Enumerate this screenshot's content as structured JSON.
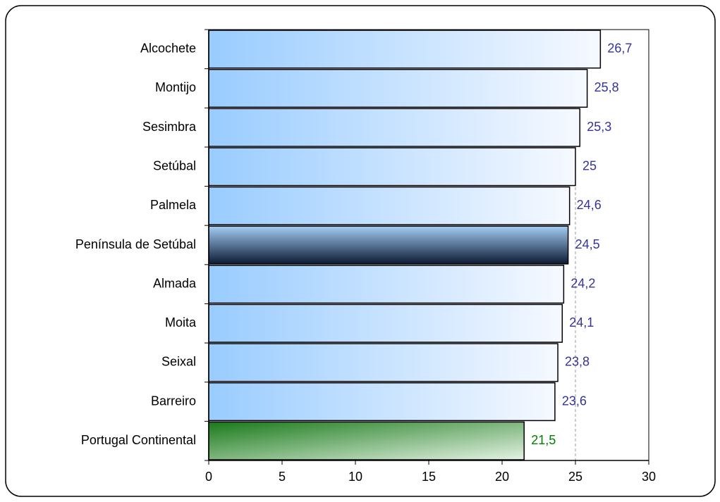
{
  "chart_data": {
    "type": "hbar",
    "categories": [
      "Alcochete",
      "Montijo",
      "Sesimbra",
      "Setúbal",
      "Palmela",
      "Península de Setúbal",
      "Almada",
      "Moita",
      "Seixal",
      "Barreiro",
      "Portugal Continental"
    ],
    "values": [
      26.7,
      25.8,
      25.3,
      25,
      24.6,
      24.5,
      24.2,
      24.1,
      23.8,
      23.6,
      21.5
    ],
    "value_labels": [
      "26,7",
      "25,8",
      "25,3",
      "25",
      "24,6",
      "24,5",
      "24,2",
      "24,1",
      "23,8",
      "23,6",
      "21,5"
    ],
    "colors": [
      "#99ccff",
      "#99ccff",
      "#99ccff",
      "#99ccff",
      "#99ccff",
      "#0d1a33",
      "#99ccff",
      "#99ccff",
      "#99ccff",
      "#99ccff",
      "#1a7a1a"
    ],
    "label_colors": [
      "#333399",
      "#333399",
      "#333399",
      "#333399",
      "#333399",
      "#333399",
      "#333399",
      "#333399",
      "#333399",
      "#333399",
      "#008000"
    ],
    "xlim": [
      0,
      30
    ],
    "xticks": [
      0,
      5,
      10,
      15,
      20,
      25,
      30
    ],
    "reference_line": 25
  }
}
